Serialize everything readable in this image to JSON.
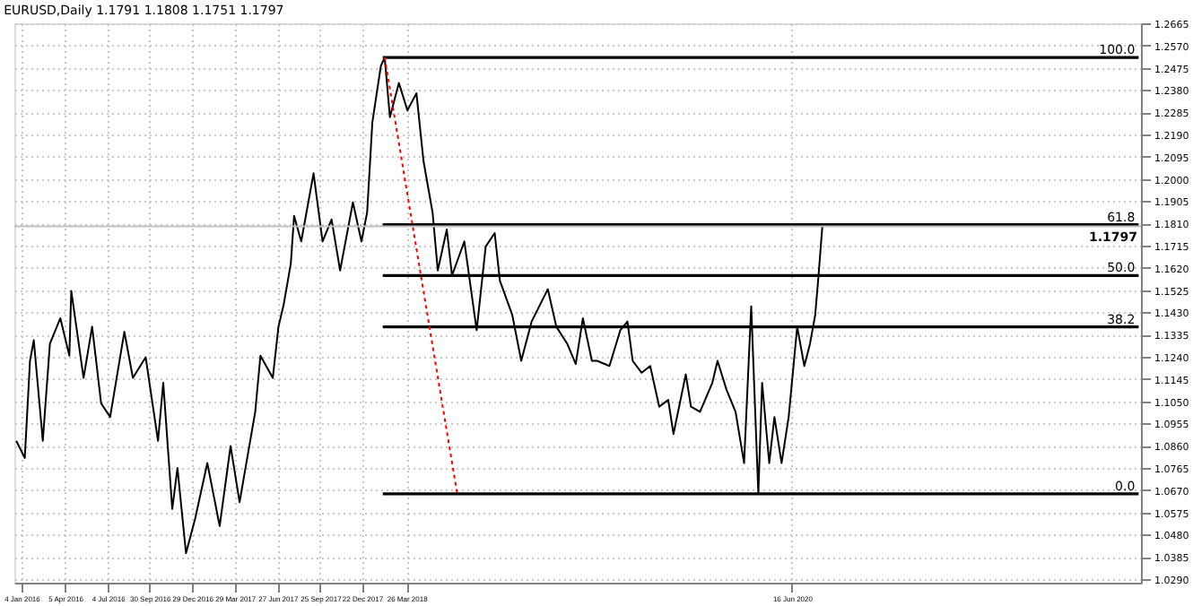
{
  "chart_data": {
    "type": "line",
    "title": "EURUSD,Daily  1.1791 1.1808 1.1751 1.1797",
    "series": [
      {
        "color": "#000000",
        "x": [
          "2015-12-24",
          "2016-01-11",
          "2016-01-22",
          "2016-01-30",
          "2016-02-18",
          "2016-03-04",
          "2016-03-26",
          "2016-04-14",
          "2016-04-18",
          "2016-05-14",
          "2016-06-01",
          "2016-06-20",
          "2016-07-09",
          "2016-08-08",
          "2016-08-26",
          "2016-09-22",
          "2016-10-18",
          "2016-10-29",
          "2016-11-17",
          "2016-11-28",
          "2016-12-16",
          "2017-01-04",
          "2017-01-30",
          "2017-02-25",
          "2017-03-20",
          "2017-04-08",
          "2017-05-11",
          "2017-05-22",
          "2017-06-17",
          "2017-06-29",
          "2017-07-10",
          "2017-07-25",
          "2017-08-01",
          "2017-08-16",
          "2017-09-11",
          "2017-09-30",
          "2017-10-19",
          "2017-11-06",
          "2017-12-03",
          "2017-12-21",
          "2018-01-02",
          "2018-01-13",
          "2018-01-31",
          "2018-02-08",
          "2018-02-19",
          "2018-03-10",
          "2018-03-28",
          "2018-04-16",
          "2018-05-01",
          "2018-05-20",
          "2018-05-31",
          "2018-06-19",
          "2018-06-30",
          "2018-07-26",
          "2018-08-21",
          "2018-09-09",
          "2018-09-28",
          "2018-10-09",
          "2018-11-04",
          "2018-11-23",
          "2018-12-15",
          "2019-01-18",
          "2019-02-05",
          "2019-02-28",
          "2019-03-18",
          "2019-04-02",
          "2019-04-21",
          "2019-05-02",
          "2019-05-28",
          "2019-06-20",
          "2019-07-05",
          "2019-07-16",
          "2019-08-04",
          "2019-08-22",
          "2019-09-10",
          "2019-09-29",
          "2019-10-10",
          "2019-11-05",
          "2019-11-16",
          "2019-12-05",
          "2019-12-31",
          "2020-01-11",
          "2020-01-30",
          "2020-02-18",
          "2020-03-07",
          "2020-03-22",
          "2020-04-06",
          "2020-04-14",
          "2020-04-29",
          "2020-05-10",
          "2020-05-25",
          "2020-06-09",
          "2020-06-27",
          "2020-07-12",
          "2020-07-24",
          "2020-08-04",
          "2020-08-11",
          "2020-08-19"
        ],
        "values": [
          1.0881,
          1.0808,
          1.1223,
          1.1311,
          1.0881,
          1.1296,
          1.1405,
          1.1245,
          1.1522,
          1.115,
          1.1369,
          1.1041,
          1.0983,
          1.1347,
          1.115,
          1.1238,
          1.0881,
          1.1129,
          1.059,
          1.0765,
          1.0401,
          1.0546,
          1.0786,
          1.0517,
          1.0859,
          1.0619,
          1.1005,
          1.1245,
          1.115,
          1.1369,
          1.1463,
          1.1638,
          1.1842,
          1.1733,
          1.2024,
          1.1733,
          1.1827,
          1.1609,
          1.19,
          1.1733,
          1.1857,
          1.2242,
          1.2483,
          1.2519,
          1.2264,
          1.241,
          1.2293,
          1.2366,
          1.2075,
          1.1857,
          1.1609,
          1.1784,
          1.1587,
          1.1733,
          1.1354,
          1.1711,
          1.1769,
          1.1565,
          1.142,
          1.1223,
          1.1391,
          1.1529,
          1.1369,
          1.1296,
          1.1209,
          1.1405,
          1.1223,
          1.1223,
          1.1201,
          1.1354,
          1.1391,
          1.1223,
          1.1172,
          1.1201,
          1.1027,
          1.1056,
          1.091,
          1.1165,
          1.1027,
          1.1005,
          1.1129,
          1.1223,
          1.1099,
          1.1005,
          1.0786,
          1.1456,
          1.0655,
          1.1129,
          1.0786,
          1.0983,
          1.0786,
          1.0983,
          1.1369,
          1.1201,
          1.1296,
          1.142,
          1.1587,
          1.1797
        ]
      },
      {
        "name": "100.0",
        "color": "#000000",
        "x": [
          "2018-02-04",
          "2022-06-17"
        ],
        "values": [
          1.2519,
          1.2519
        ]
      },
      {
        "name": "61.8",
        "color": "#000000",
        "x": [
          "2018-02-04",
          "2022-06-17"
        ],
        "values": [
          1.1805,
          1.1805
        ]
      },
      {
        "name": "50.0",
        "color": "#000000",
        "x": [
          "2018-02-04",
          "2022-06-17"
        ],
        "values": [
          1.1587,
          1.1587
        ]
      },
      {
        "name": "38.2",
        "color": "#000000",
        "x": [
          "2018-02-04",
          "2022-06-17"
        ],
        "values": [
          1.1368,
          1.1368
        ]
      },
      {
        "name": "0.0",
        "color": "#000000",
        "x": [
          "2018-02-04",
          "2022-06-17"
        ],
        "values": [
          1.0655,
          1.0655
        ]
      },
      {
        "color": "#ff0000",
        "line_style": "dotted",
        "x": [
          "2018-02-08",
          "2018-07-11"
        ],
        "values": [
          1.2519,
          1.0655
        ]
      }
    ],
    "ref_lines": [
      {
        "axis": "y",
        "value": 1.1797,
        "label": "1.1797",
        "color": "#c0c0c0"
      }
    ],
    "xlim": [
      "2015-12-20",
      "2022-06-22"
    ],
    "xticks": [
      {
        "value": "2016-01-04",
        "label": "4 Jan 2016"
      },
      {
        "value": "2016-04-05",
        "label": "5 Apr 2016"
      },
      {
        "value": "2016-07-04",
        "label": "4 Jul 2016"
      },
      {
        "value": "2016-09-30",
        "label": "30 Sep 2016"
      },
      {
        "value": "2016-12-29",
        "label": "29 Dec 2016"
      },
      {
        "value": "2017-03-29",
        "label": "29 Mar 2017"
      },
      {
        "value": "2017-06-27",
        "label": "27 Jun 2017"
      },
      {
        "value": "2017-09-25",
        "label": "25 Sep 2017"
      },
      {
        "value": "2017-12-22",
        "label": "22 Dec 2017"
      },
      {
        "value": "2018-03-26",
        "label": "26 Mar 2018"
      },
      {
        "value": "2020-06-16",
        "label": "16 Jun 2020"
      }
    ],
    "ylim": [
      1.0275,
      1.2665
    ],
    "yticks": [
      {
        "value": 1.029,
        "label": "1.0290"
      },
      1.0385,
      {
        "value": 1.048,
        "label": "1.0480"
      },
      1.0575,
      {
        "value": 1.067,
        "label": "1.0670"
      },
      1.0765,
      {
        "value": 1.086,
        "label": "1.0860"
      },
      1.0955,
      {
        "value": 1.105,
        "label": "1.1050"
      },
      1.1145,
      {
        "value": 1.124,
        "label": "1.1240"
      },
      1.1335,
      {
        "value": 1.143,
        "label": "1.1430"
      },
      1.1525,
      {
        "value": 1.162,
        "label": "1.1620"
      },
      1.1715,
      {
        "value": 1.181,
        "label": "1.1810"
      },
      1.1905,
      {
        "value": 1.2,
        "label": "1.2000"
      },
      1.2095,
      {
        "value": 1.219,
        "label": "1.2190"
      },
      1.2285,
      {
        "value": 1.238,
        "label": "1.2380"
      },
      1.2475,
      {
        "value": 1.257,
        "label": "1.2570"
      },
      1.2665
    ],
    "grid": true,
    "marker": "none",
    "line_style": "solid"
  }
}
